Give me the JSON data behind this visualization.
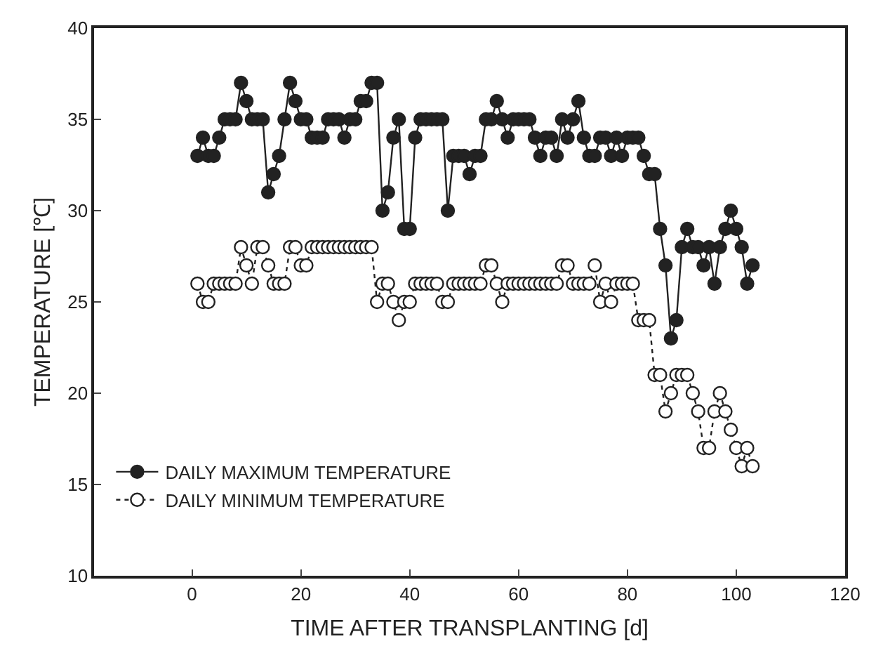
{
  "chart_data": {
    "type": "line",
    "xlabel": "TIME AFTER TRANSPLANTING [d]",
    "ylabel": "TEMPERATURE [℃]",
    "x": [
      1,
      2,
      3,
      4,
      5,
      6,
      7,
      8,
      9,
      10,
      11,
      12,
      13,
      14,
      15,
      16,
      17,
      18,
      19,
      20,
      21,
      22,
      23,
      24,
      25,
      26,
      27,
      28,
      29,
      30,
      31,
      32,
      33,
      34,
      35,
      36,
      37,
      38,
      39,
      40,
      41,
      42,
      43,
      44,
      45,
      46,
      47,
      48,
      49,
      50,
      51,
      52,
      53,
      54,
      55,
      56,
      57,
      58,
      59,
      60,
      61,
      62,
      63,
      64,
      65,
      66,
      67,
      68,
      69,
      70,
      71,
      72,
      73,
      74,
      75,
      76,
      77,
      78,
      79,
      80,
      81,
      82,
      83,
      84,
      85,
      86,
      87,
      88,
      89,
      90,
      91,
      92,
      93,
      94,
      95,
      96,
      97,
      98,
      99,
      100,
      101,
      102,
      103
    ],
    "series": [
      {
        "name": "DAILY MAXIMUM TEMPERATURE",
        "color": "#222222",
        "line_style": "solid",
        "values": [
          33,
          34,
          33,
          33,
          34,
          35,
          35,
          35,
          37,
          36,
          35,
          35,
          35,
          31,
          32,
          33,
          35,
          37,
          36,
          35,
          35,
          34,
          34,
          34,
          35,
          35,
          35,
          34,
          35,
          35,
          36,
          36,
          37,
          37,
          30,
          31,
          34,
          35,
          29,
          29,
          34,
          35,
          35,
          35,
          35,
          35,
          30,
          33,
          33,
          33,
          32,
          33,
          33,
          35,
          35,
          36,
          35,
          34,
          35,
          35,
          35,
          35,
          34,
          33,
          34,
          34,
          33,
          35,
          34,
          35,
          36,
          34,
          33,
          33,
          34,
          34,
          33,
          34,
          33,
          34,
          34,
          34,
          33,
          32,
          32,
          29,
          27,
          23,
          24,
          28,
          29,
          28,
          28,
          27,
          28,
          26,
          28,
          29,
          30,
          29,
          28,
          26,
          27
        ]
      },
      {
        "name": "DAILY MINIMUM TEMPERATURE",
        "color": "#ffffff",
        "line_style": "dotted",
        "values": [
          26,
          25,
          25,
          26,
          26,
          26,
          26,
          26,
          28,
          27,
          26,
          28,
          28,
          27,
          26,
          26,
          26,
          28,
          28,
          27,
          27,
          28,
          28,
          28,
          28,
          28,
          28,
          28,
          28,
          28,
          28,
          28,
          28,
          25,
          26,
          26,
          25,
          24,
          25,
          25,
          26,
          26,
          26,
          26,
          26,
          25,
          25,
          26,
          26,
          26,
          26,
          26,
          26,
          27,
          27,
          26,
          25,
          26,
          26,
          26,
          26,
          26,
          26,
          26,
          26,
          26,
          26,
          27,
          27,
          26,
          26,
          26,
          26,
          27,
          25,
          26,
          25,
          26,
          26,
          26,
          26,
          24,
          24,
          24,
          21,
          21,
          19,
          20,
          21,
          21,
          21,
          20,
          19,
          17,
          17,
          19,
          20,
          19,
          18,
          17,
          16,
          17,
          16
        ]
      }
    ],
    "xlim": [
      -18,
      120
    ],
    "xticks": [
      0,
      20,
      40,
      60,
      80,
      100,
      120
    ],
    "ylim": [
      10,
      40
    ],
    "yticks": [
      10,
      15,
      20,
      25,
      30,
      35,
      40
    ],
    "grid": false,
    "legend": "bottom left",
    "marker": "circle"
  }
}
